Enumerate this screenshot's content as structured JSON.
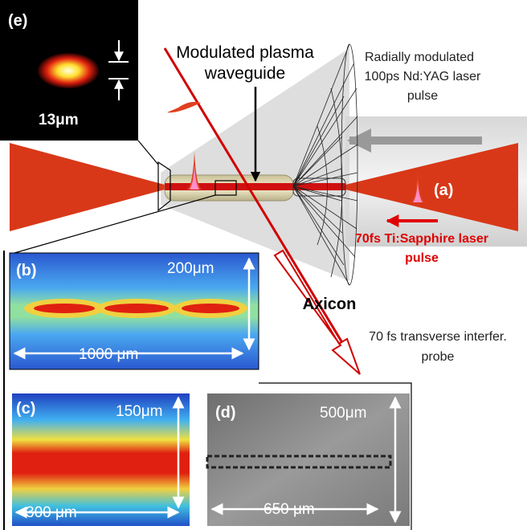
{
  "panel_e": {
    "label": "(e)",
    "scale": "13μm"
  },
  "waveguide_label": [
    "Modulated plasma",
    "waveguide"
  ],
  "nd_yag_label": [
    "Radially modulated",
    "100ps Nd:YAG laser",
    "pulse"
  ],
  "panel_a": {
    "label": "(a)"
  },
  "ti_sapphire_label": [
    "70fs Ti:Sapphire laser",
    "pulse"
  ],
  "axicon_label": "Axicon",
  "probe_label": [
    "70 fs transverse interfer.",
    "probe"
  ],
  "panel_b": {
    "label": "(b)",
    "height": "200μm",
    "width": "1000 μm"
  },
  "panel_c": {
    "label": "(c)",
    "height": "150μm",
    "width": "300 μm"
  },
  "panel_d": {
    "label": "(d)",
    "height": "500μm",
    "width": "650 μm"
  }
}
